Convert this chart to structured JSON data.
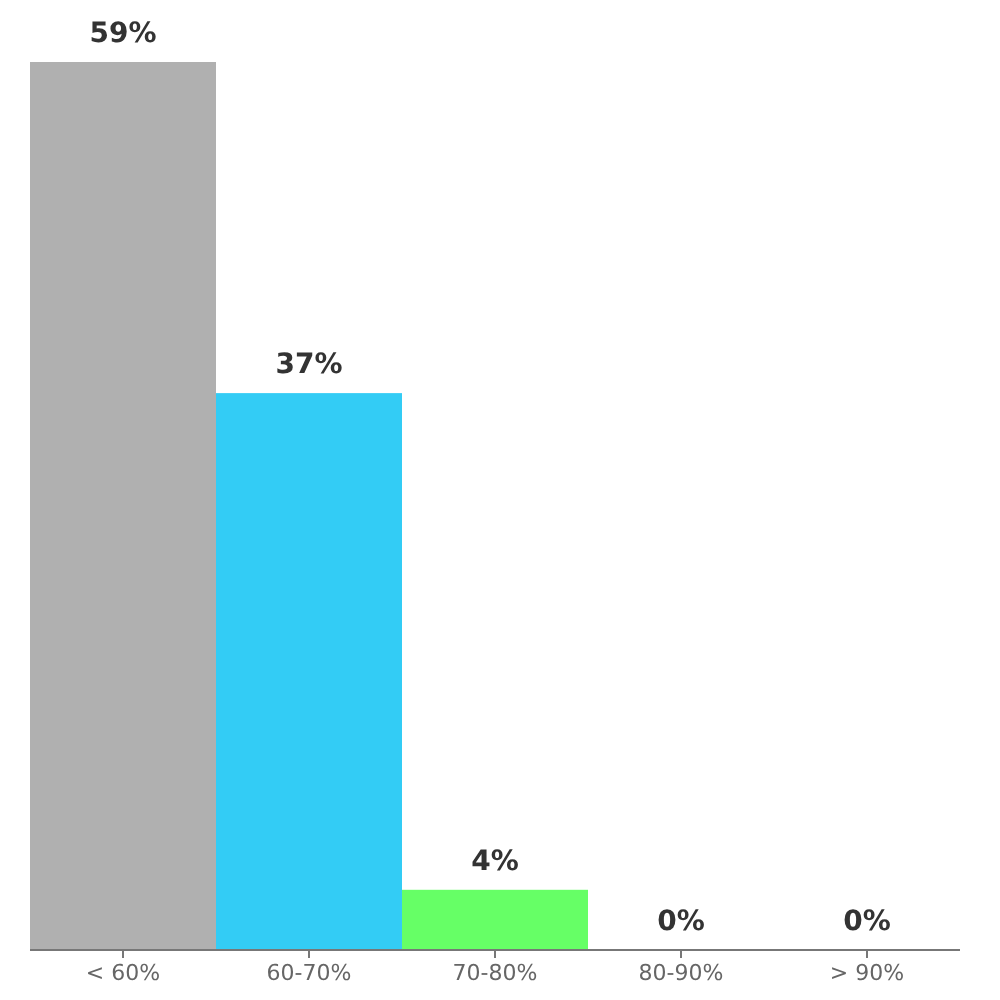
{
  "chart_data": {
    "type": "bar",
    "categories": [
      "< 60%",
      "60-70%",
      "70-80%",
      "80-90%",
      "> 90%"
    ],
    "values": [
      59,
      37,
      4,
      0,
      0
    ],
    "colors": [
      "#b0b0b0",
      "#33ccf5",
      "#66ff66",
      "#66ff66",
      "#66ff66"
    ],
    "value_labels": [
      "59%",
      "37%",
      "4%",
      "0%",
      "0%"
    ]
  }
}
